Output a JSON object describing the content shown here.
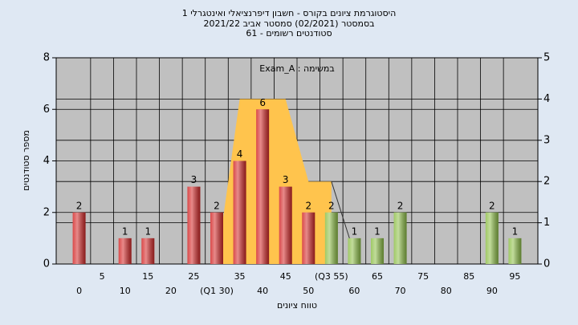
{
  "chart_data": {
    "type": "bar",
    "title_lines": [
      "היסטוגרמת ציונים בקורס - חשבון דיפרנציאלי ואינטגרלי 1",
      "בסמסטר  (02/2021)  סמסטר אביב 2021/22",
      "סטודנטים רשומים - 61"
    ],
    "annotation": "במשימה : Exam_A",
    "x_label": "טווח ציונים",
    "y_label": "מספר סטודנטים",
    "xlim": [
      -5,
      100
    ],
    "xticks": [
      0,
      5,
      10,
      15,
      20,
      25,
      {
        "value": 30,
        "label": "(Q1 30)"
      },
      35,
      40,
      45,
      50,
      {
        "value": 55,
        "label": "(Q3 55)"
      },
      60,
      65,
      70,
      75,
      80,
      85,
      90,
      95
    ],
    "ylim": [
      0,
      8
    ],
    "yticks": [
      0,
      2,
      4,
      6,
      8
    ],
    "y2lim": [
      0,
      5
    ],
    "y2ticks": [
      0,
      1,
      2,
      3,
      4,
      5
    ],
    "grid": true,
    "series": [
      {
        "type": "area",
        "axis": "y2",
        "color": "#ffc44d",
        "x": [
          30,
          35,
          45,
          50,
          55
        ],
        "values": [
          0,
          4,
          4,
          2,
          2
        ]
      },
      {
        "type": "line",
        "axis": "y2",
        "color": "#333333",
        "x": [
          55,
          59
        ],
        "values": [
          2,
          0.6
        ]
      },
      {
        "type": "bar",
        "x": [
          0,
          5,
          10,
          15,
          20,
          25,
          30,
          35,
          40,
          45,
          50,
          55,
          60,
          65,
          70,
          75,
          80,
          85,
          90,
          95
        ],
        "values": [
          2,
          null,
          1,
          1,
          null,
          3,
          2,
          4,
          6,
          3,
          2,
          2,
          1,
          1,
          2,
          null,
          null,
          null,
          2,
          1
        ],
        "colors": [
          "#d42a2a",
          "#d42a2a",
          "#d42a2a",
          "#d42a2a",
          "#d42a2a",
          "#d42a2a",
          "#d42a2a",
          "#d42a2a",
          "#d42a2a",
          "#d42a2a",
          "#d42a2a",
          "#8fc04a",
          "#8fc04a",
          "#8fc04a",
          "#8fc04a",
          "#8fc04a",
          "#8fc04a",
          "#8fc04a",
          "#8fc04a",
          "#8fc04a"
        ]
      }
    ]
  }
}
